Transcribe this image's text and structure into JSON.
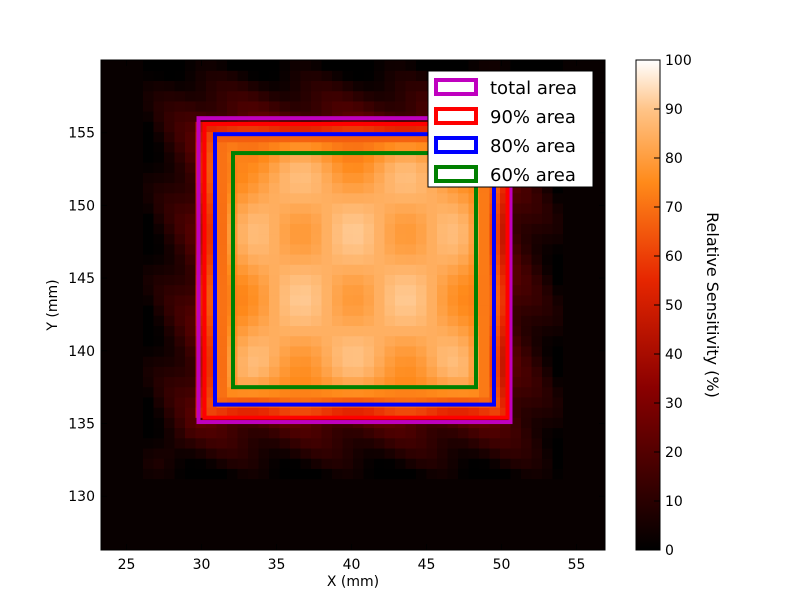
{
  "chart_data": {
    "type": "heatmap",
    "xlabel": "X (mm)",
    "ylabel": "Y (mm)",
    "xlim": [
      23.3,
      56.9
    ],
    "ylim": [
      126.3,
      160.0
    ],
    "xticks": [
      25,
      30,
      35,
      40,
      45,
      50,
      55
    ],
    "yticks": [
      130,
      135,
      140,
      145,
      150,
      155
    ],
    "colorbar": {
      "label": "Relative Sensitivity (%)",
      "range": [
        0,
        100
      ],
      "ticks": [
        0,
        10,
        20,
        30,
        40,
        50,
        60,
        70,
        80,
        90,
        100
      ],
      "colormap": "gist_heat"
    },
    "legend_position": "top-right",
    "regions": [
      {
        "name": "total area",
        "color": "#bf00bf",
        "x": [
          29.8,
          50.6
        ],
        "y": [
          135.1,
          156.0
        ]
      },
      {
        "name": "90% area",
        "color": "#ff0000",
        "x": [
          30.2,
          50.4
        ],
        "y": [
          135.4,
          155.6
        ]
      },
      {
        "name": "80% area",
        "color": "#0000ff",
        "x": [
          30.9,
          49.5
        ],
        "y": [
          136.3,
          154.9
        ]
      },
      {
        "name": "60% area",
        "color": "#008000",
        "x": [
          32.1,
          48.3
        ],
        "y": [
          137.5,
          153.6
        ]
      }
    ],
    "sensitivity_grid": {
      "x_range": [
        29.8,
        50.6
      ],
      "y_range": [
        135.1,
        156.0
      ],
      "center_level": 85,
      "edge_level": 45,
      "outer_ring_level": 18
    }
  }
}
